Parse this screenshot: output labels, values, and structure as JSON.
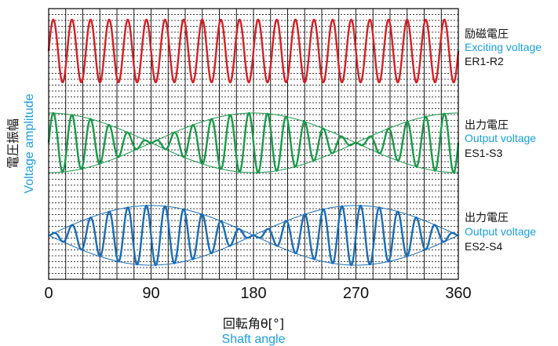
{
  "chart_data": {
    "type": "line",
    "x_range": [
      0,
      360
    ],
    "x_ticks": [
      0,
      90,
      180,
      270,
      360
    ],
    "xlabel_jp": "回転角θ[°]",
    "xlabel_en": "Shaft angle",
    "ylabel_jp": "電圧振幅",
    "ylabel_en": "Voltage amplitude",
    "grid": true,
    "carrier_cycles": 22,
    "series": [
      {
        "name_jp": "励磁電圧",
        "name_en": "Exciting voltage",
        "id": "ER1-R2",
        "color": "#d42027",
        "envelope": "constant",
        "amplitude": 1.0
      },
      {
        "name_jp": "出力電圧",
        "name_en": "Output voltage",
        "id": "ES1-S3",
        "color": "#1a9a4a",
        "envelope": "cos",
        "amplitude": 1.0
      },
      {
        "name_jp": "出力電圧",
        "name_en": "Output voltage",
        "id": "ES2-S4",
        "color": "#1a6db5",
        "envelope": "sin",
        "amplitude": 1.0
      }
    ],
    "label_color_en": "#1aa0e0"
  }
}
